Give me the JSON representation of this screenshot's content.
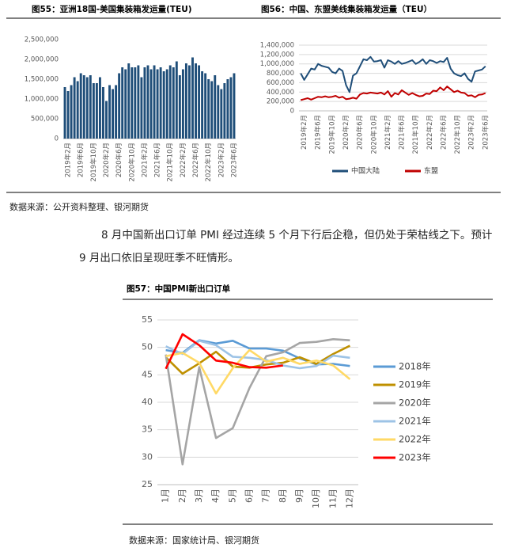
{
  "chart_data": [
    {
      "type": "bar",
      "title": "图55：亚洲18国-美国集装箱发运量(TEU)",
      "color": "#1f4e79",
      "grid": false,
      "categories": [
        null,
        "2019年2月",
        null,
        null,
        null,
        "2019年6月",
        null,
        null,
        null,
        "2019年10月",
        null,
        null,
        null,
        "2020年2月",
        null,
        null,
        null,
        "2020年6月",
        null,
        null,
        null,
        "2020年10月",
        null,
        null,
        null,
        "2021年2月",
        null,
        null,
        null,
        "2021年6月",
        null,
        null,
        null,
        "2021年10月",
        null,
        null,
        null,
        "2022年2月",
        null,
        null,
        null,
        "2022年6月",
        null,
        null,
        null,
        "2022年10月",
        null,
        null,
        null,
        "2023年2月",
        null,
        null,
        null,
        "2023年6月"
      ],
      "values": [
        1300000,
        1200000,
        1350000,
        1550000,
        1450000,
        1650000,
        1600000,
        1550000,
        1600000,
        1400000,
        1400000,
        1550000,
        1300000,
        950000,
        1350000,
        1250000,
        1350000,
        1650000,
        1800000,
        1750000,
        1900000,
        1800000,
        1800000,
        1850000,
        1550000,
        1800000,
        1850000,
        1750000,
        1850000,
        1750000,
        1800000,
        1700000,
        1750000,
        1850000,
        1800000,
        1950000,
        1600000,
        1750000,
        1900000,
        1850000,
        2050000,
        1900000,
        1850000,
        1700000,
        1650000,
        1500000,
        1450000,
        1600000,
        1350000,
        1250000,
        1400000,
        1500000,
        1550000,
        1650000
      ],
      "ylim": [
        0,
        2500000
      ],
      "yticks": [
        0,
        {
          "value": 500000,
          "label": "500,000"
        },
        {
          "value": 1000000,
          "label": "1,000,000"
        },
        {
          "value": 1500000,
          "label": "1,500,000"
        },
        {
          "value": 2000000,
          "label": "2,000,000"
        },
        {
          "value": 2500000,
          "label": "2,500,000"
        }
      ]
    },
    {
      "type": "line",
      "title": "图56：中国、东盟美线集装箱发运量（TEU）",
      "grid": true,
      "legend": "bottom",
      "categories": [
        null,
        "2019年2月",
        null,
        null,
        null,
        "2019年6月",
        null,
        null,
        null,
        "2019年10月",
        null,
        null,
        null,
        "2020年2月",
        null,
        null,
        null,
        "2020年6月",
        null,
        null,
        null,
        "2020年10月",
        null,
        null,
        null,
        "2021年2月",
        null,
        null,
        null,
        "2021年6月",
        null,
        null,
        null,
        "2021年10月",
        null,
        null,
        null,
        "2022年2月",
        null,
        null,
        null,
        "2022年6月",
        null,
        null,
        null,
        "2022年10月",
        null,
        null,
        null,
        "2023年2月",
        null,
        null,
        null,
        "2023年6月"
      ],
      "series": [
        {
          "name": "中国大陆",
          "color": "#1f4e79",
          "values": [
            800000,
            660000,
            780000,
            900000,
            880000,
            1000000,
            960000,
            940000,
            920000,
            830000,
            800000,
            900000,
            850000,
            550000,
            400000,
            750000,
            800000,
            950000,
            1100000,
            1080000,
            1150000,
            1050000,
            1060000,
            1080000,
            920000,
            1080000,
            1050000,
            1000000,
            1060000,
            1000000,
            1020000,
            1050000,
            1080000,
            1000000,
            1040000,
            1100000,
            1000000,
            1080000,
            1060000,
            1020000,
            1060000,
            1040000,
            1130000,
            900000,
            800000,
            760000,
            740000,
            800000,
            680000,
            620000,
            840000,
            860000,
            880000,
            950000
          ]
        },
        {
          "name": "东盟",
          "color": "#c00000",
          "values": [
            230000,
            250000,
            270000,
            240000,
            270000,
            300000,
            290000,
            310000,
            290000,
            300000,
            320000,
            280000,
            300000,
            250000,
            260000,
            280000,
            260000,
            350000,
            380000,
            370000,
            390000,
            380000,
            370000,
            390000,
            350000,
            420000,
            300000,
            380000,
            350000,
            440000,
            390000,
            340000,
            380000,
            340000,
            310000,
            320000,
            370000,
            360000,
            430000,
            420000,
            500000,
            440000,
            520000,
            460000,
            400000,
            430000,
            390000,
            380000,
            320000,
            330000,
            290000,
            340000,
            350000,
            380000
          ]
        }
      ],
      "ylim": [
        0,
        1400000
      ],
      "yticks": [
        0,
        {
          "value": 200000,
          "label": "200,000"
        },
        {
          "value": 400000,
          "label": "400,000"
        },
        {
          "value": 600000,
          "label": "600,000"
        },
        {
          "value": 800000,
          "label": "800,000"
        },
        {
          "value": 1000000,
          "label": "1,000,000"
        },
        {
          "value": 1200000,
          "label": "1,200,000"
        },
        {
          "value": 1400000,
          "label": "1,400,000"
        }
      ]
    },
    {
      "type": "line",
      "title": "图57：中国PMI新出口订单",
      "grid": true,
      "legend": "right",
      "categories": [
        "1月",
        "2月",
        "3月",
        "4月",
        "5月",
        "6月",
        "7月",
        "8月",
        "9月",
        "10月",
        "11月",
        "12月"
      ],
      "series": [
        {
          "name": "2018年",
          "color": "#5b9bd5",
          "values": [
            49.5,
            49.0,
            51.3,
            50.7,
            51.2,
            49.8,
            49.8,
            49.4,
            48.0,
            46.9,
            47.0,
            46.6
          ]
        },
        {
          "name": "2019年",
          "color": "#bf9000",
          "values": [
            48.2,
            45.2,
            47.1,
            49.2,
            46.5,
            46.3,
            46.9,
            47.2,
            48.2,
            47.0,
            48.8,
            50.3
          ]
        },
        {
          "name": "2020年",
          "color": "#a5a5a5",
          "values": [
            48.7,
            28.7,
            46.4,
            33.5,
            35.3,
            42.6,
            48.4,
            49.1,
            50.8,
            51.0,
            51.5,
            51.3
          ]
        },
        {
          "name": "2021年",
          "color": "#9dc3e6",
          "values": [
            50.2,
            48.8,
            51.2,
            50.4,
            48.3,
            48.1,
            47.7,
            46.7,
            46.2,
            46.6,
            48.5,
            48.1
          ]
        },
        {
          "name": "2022年",
          "color": "#ffd966",
          "values": [
            48.4,
            49.0,
            47.2,
            41.6,
            46.2,
            49.5,
            47.4,
            48.1,
            47.0,
            47.6,
            46.7,
            44.2
          ]
        },
        {
          "name": "2023年",
          "color": "#ff0000",
          "values": [
            46.1,
            52.4,
            50.4,
            47.6,
            47.2,
            46.4,
            46.3,
            46.7,
            null,
            null,
            null,
            null
          ]
        }
      ],
      "ylim": [
        25,
        55
      ],
      "yticks": [
        25,
        30,
        35,
        40,
        45,
        50,
        55
      ]
    }
  ],
  "document": {
    "source_top": "数据来源：公开资料整理、银河期货",
    "paragraph": [
      "8 月中国新出口订单 PMI 经过连续 5 个月下行后企稳，但仍处于荣枯线之下。预计",
      "9 月出口依旧呈现旺季不旺情形。"
    ],
    "source_bottom": "数据来源：国家统计局、银河期货"
  }
}
